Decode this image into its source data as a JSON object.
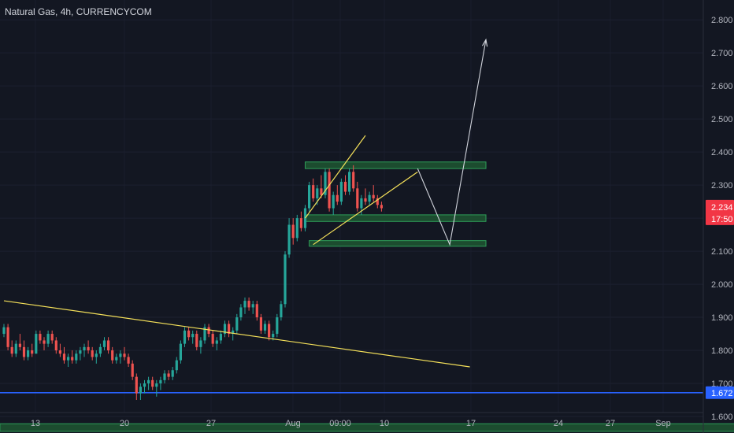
{
  "header": {
    "title": "Natural Gas, 4h, CURRENCYCOM"
  },
  "colors": {
    "background": "#131722",
    "up": "#26a69a",
    "down": "#ef5350",
    "trendline": "#f5e15a",
    "zone_fill": "#1e5631",
    "zone_border": "#2e9e58",
    "support_line": "#2962ff",
    "projection": "#d1d4dc",
    "price_badge": "#f23645",
    "support_badge": "#2962ff"
  },
  "chart_data": {
    "type": "candlestick",
    "instrument": "Natural Gas",
    "timeframe": "4h",
    "source": "CURRENCYCOM",
    "x_ticks": [
      "13",
      "20",
      "27",
      "Aug",
      "09:00",
      "10",
      "17",
      "24",
      "27",
      "Sep"
    ],
    "y_ticks": [
      "2.800",
      "2.700",
      "2.600",
      "2.500",
      "2.400",
      "2.300",
      "2.200",
      "2.100",
      "2.000",
      "1.900",
      "1.800",
      "1.700",
      "1.600"
    ],
    "ylim": [
      1.55,
      2.86
    ],
    "last_price": "2.234",
    "countdown": "17:50",
    "support_level": "1.672",
    "ohlc": [
      [
        1.85,
        1.88,
        1.84,
        1.87
      ],
      [
        1.87,
        1.88,
        1.8,
        1.81
      ],
      [
        1.81,
        1.83,
        1.78,
        1.79
      ],
      [
        1.79,
        1.83,
        1.78,
        1.82
      ],
      [
        1.82,
        1.85,
        1.8,
        1.81
      ],
      [
        1.81,
        1.83,
        1.77,
        1.78
      ],
      [
        1.78,
        1.81,
        1.77,
        1.8
      ],
      [
        1.8,
        1.82,
        1.78,
        1.79
      ],
      [
        1.79,
        1.86,
        1.79,
        1.85
      ],
      [
        1.85,
        1.86,
        1.82,
        1.83
      ],
      [
        1.83,
        1.84,
        1.8,
        1.82
      ],
      [
        1.82,
        1.86,
        1.81,
        1.85
      ],
      [
        1.85,
        1.86,
        1.82,
        1.83
      ],
      [
        1.83,
        1.84,
        1.79,
        1.8
      ],
      [
        1.8,
        1.82,
        1.78,
        1.79
      ],
      [
        1.79,
        1.81,
        1.76,
        1.77
      ],
      [
        1.77,
        1.79,
        1.75,
        1.78
      ],
      [
        1.78,
        1.8,
        1.76,
        1.77
      ],
      [
        1.77,
        1.8,
        1.76,
        1.79
      ],
      [
        1.79,
        1.81,
        1.77,
        1.8
      ],
      [
        1.8,
        1.82,
        1.78,
        1.81
      ],
      [
        1.81,
        1.83,
        1.79,
        1.8
      ],
      [
        1.8,
        1.81,
        1.77,
        1.78
      ],
      [
        1.78,
        1.8,
        1.76,
        1.79
      ],
      [
        1.79,
        1.82,
        1.78,
        1.81
      ],
      [
        1.81,
        1.84,
        1.8,
        1.83
      ],
      [
        1.83,
        1.84,
        1.79,
        1.8
      ],
      [
        1.8,
        1.81,
        1.76,
        1.77
      ],
      [
        1.77,
        1.79,
        1.76,
        1.78
      ],
      [
        1.78,
        1.8,
        1.76,
        1.79
      ],
      [
        1.79,
        1.81,
        1.77,
        1.78
      ],
      [
        1.78,
        1.79,
        1.75,
        1.76
      ],
      [
        1.76,
        1.77,
        1.71,
        1.72
      ],
      [
        1.72,
        1.73,
        1.65,
        1.67
      ],
      [
        1.67,
        1.7,
        1.65,
        1.69
      ],
      [
        1.69,
        1.71,
        1.67,
        1.7
      ],
      [
        1.7,
        1.72,
        1.68,
        1.71
      ],
      [
        1.71,
        1.72,
        1.68,
        1.69
      ],
      [
        1.69,
        1.71,
        1.66,
        1.7
      ],
      [
        1.7,
        1.72,
        1.68,
        1.71
      ],
      [
        1.71,
        1.74,
        1.7,
        1.73
      ],
      [
        1.73,
        1.74,
        1.71,
        1.72
      ],
      [
        1.72,
        1.75,
        1.71,
        1.74
      ],
      [
        1.74,
        1.78,
        1.73,
        1.77
      ],
      [
        1.77,
        1.83,
        1.76,
        1.82
      ],
      [
        1.82,
        1.87,
        1.81,
        1.86
      ],
      [
        1.86,
        1.87,
        1.83,
        1.84
      ],
      [
        1.84,
        1.86,
        1.82,
        1.85
      ],
      [
        1.85,
        1.86,
        1.8,
        1.81
      ],
      [
        1.81,
        1.84,
        1.79,
        1.83
      ],
      [
        1.83,
        1.88,
        1.82,
        1.87
      ],
      [
        1.87,
        1.88,
        1.84,
        1.85
      ],
      [
        1.85,
        1.86,
        1.81,
        1.82
      ],
      [
        1.82,
        1.84,
        1.8,
        1.83
      ],
      [
        1.83,
        1.86,
        1.82,
        1.85
      ],
      [
        1.85,
        1.89,
        1.84,
        1.88
      ],
      [
        1.88,
        1.89,
        1.84,
        1.85
      ],
      [
        1.85,
        1.87,
        1.83,
        1.86
      ],
      [
        1.86,
        1.91,
        1.85,
        1.9
      ],
      [
        1.9,
        1.94,
        1.89,
        1.93
      ],
      [
        1.93,
        1.96,
        1.91,
        1.95
      ],
      [
        1.95,
        1.96,
        1.92,
        1.93
      ],
      [
        1.93,
        1.95,
        1.91,
        1.94
      ],
      [
        1.94,
        1.95,
        1.89,
        1.9
      ],
      [
        1.9,
        1.91,
        1.85,
        1.86
      ],
      [
        1.86,
        1.89,
        1.85,
        1.88
      ],
      [
        1.88,
        1.89,
        1.83,
        1.84
      ],
      [
        1.84,
        1.86,
        1.83,
        1.85
      ],
      [
        1.85,
        1.91,
        1.84,
        1.9
      ],
      [
        1.9,
        1.95,
        1.89,
        1.94
      ],
      [
        1.94,
        2.1,
        1.93,
        2.09
      ],
      [
        2.09,
        2.2,
        2.08,
        2.18
      ],
      [
        2.18,
        2.2,
        2.12,
        2.14
      ],
      [
        2.14,
        2.21,
        2.13,
        2.2
      ],
      [
        2.2,
        2.22,
        2.16,
        2.17
      ],
      [
        2.17,
        2.24,
        2.16,
        2.23
      ],
      [
        2.23,
        2.31,
        2.22,
        2.3
      ],
      [
        2.3,
        2.32,
        2.25,
        2.26
      ],
      [
        2.26,
        2.3,
        2.24,
        2.29
      ],
      [
        2.29,
        2.33,
        2.26,
        2.27
      ],
      [
        2.27,
        2.35,
        2.26,
        2.34
      ],
      [
        2.34,
        2.35,
        2.22,
        2.23
      ],
      [
        2.23,
        2.28,
        2.21,
        2.27
      ],
      [
        2.27,
        2.3,
        2.24,
        2.25
      ],
      [
        2.25,
        2.32,
        2.24,
        2.31
      ],
      [
        2.31,
        2.33,
        2.27,
        2.28
      ],
      [
        2.28,
        2.35,
        2.27,
        2.34
      ],
      [
        2.34,
        2.36,
        2.28,
        2.29
      ],
      [
        2.29,
        2.31,
        2.22,
        2.23
      ],
      [
        2.23,
        2.27,
        2.21,
        2.26
      ],
      [
        2.26,
        2.29,
        2.24,
        2.25
      ],
      [
        2.25,
        2.28,
        2.24,
        2.27
      ],
      [
        2.27,
        2.3,
        2.25,
        2.26
      ],
      [
        2.26,
        2.27,
        2.23,
        2.24
      ],
      [
        2.24,
        2.25,
        2.22,
        2.23
      ]
    ],
    "annotations": {
      "descending_trendline": [
        [
          0,
          1.95
        ],
        [
          116,
          1.75
        ]
      ],
      "wedge_upper": [
        [
          75,
          2.2
        ],
        [
          90,
          2.45
        ]
      ],
      "wedge_lower": [
        [
          77,
          2.12
        ],
        [
          103,
          2.34
        ]
      ],
      "zones": [
        {
          "x0": 75,
          "x1": 120,
          "y0": 2.35,
          "y1": 2.37
        },
        {
          "x0": 75,
          "x1": 120,
          "y0": 2.19,
          "y1": 2.21
        },
        {
          "x0": 76,
          "x1": 120,
          "y0": 2.115,
          "y1": 2.132
        },
        {
          "x0": -1,
          "x1": 183,
          "y0": 1.555,
          "y1": 1.578
        }
      ],
      "projection_path": [
        [
          103,
          2.35
        ],
        [
          111,
          2.12
        ],
        [
          120,
          2.74
        ]
      ],
      "support_line": 1.672
    }
  }
}
